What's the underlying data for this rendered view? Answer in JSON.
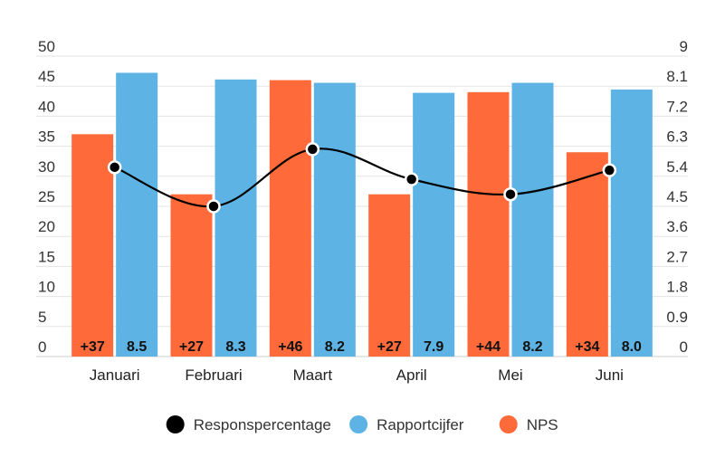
{
  "chart_data": {
    "type": "bar",
    "categories": [
      "Januari",
      "Februari",
      "Maart",
      "April",
      "Mei",
      "Juni"
    ],
    "series": [
      {
        "name": "NPS",
        "kind": "bar",
        "axis": "left",
        "color": "#ff6a3a",
        "values": [
          37,
          27,
          46,
          27,
          44,
          34
        ],
        "labels": [
          "+37",
          "+27",
          "+46",
          "+27",
          "+44",
          "+34"
        ]
      },
      {
        "name": "Rapportcijfer",
        "kind": "bar",
        "axis": "right",
        "color": "#5cb3e4",
        "values": [
          8.5,
          8.3,
          8.2,
          7.9,
          8.2,
          8.0
        ],
        "labels": [
          "8.5",
          "8.3",
          "8.2",
          "7.9",
          "8.2",
          "8.0"
        ]
      },
      {
        "name": "Responspercentage",
        "kind": "line",
        "axis": "left",
        "color": "#000000",
        "values": [
          31.5,
          25,
          34.5,
          29.5,
          27,
          31
        ]
      }
    ],
    "y_left": {
      "min": 0,
      "max": 50,
      "ticks": [
        "0",
        "5",
        "10",
        "15",
        "20",
        "25",
        "30",
        "35",
        "40",
        "45",
        "50"
      ]
    },
    "y_right": {
      "min": 0,
      "max": 9,
      "ticks": [
        "0",
        "0.9",
        "1.8",
        "2.7",
        "3.6",
        "4.5",
        "5.4",
        "6.3",
        "7.2",
        "8.1",
        "9"
      ]
    },
    "grid": true,
    "legend": {
      "position": "bottom",
      "items": [
        "Responspercentage",
        "Rapportcijfer",
        "NPS"
      ]
    },
    "title": "",
    "xlabel": "",
    "ylabel": ""
  }
}
